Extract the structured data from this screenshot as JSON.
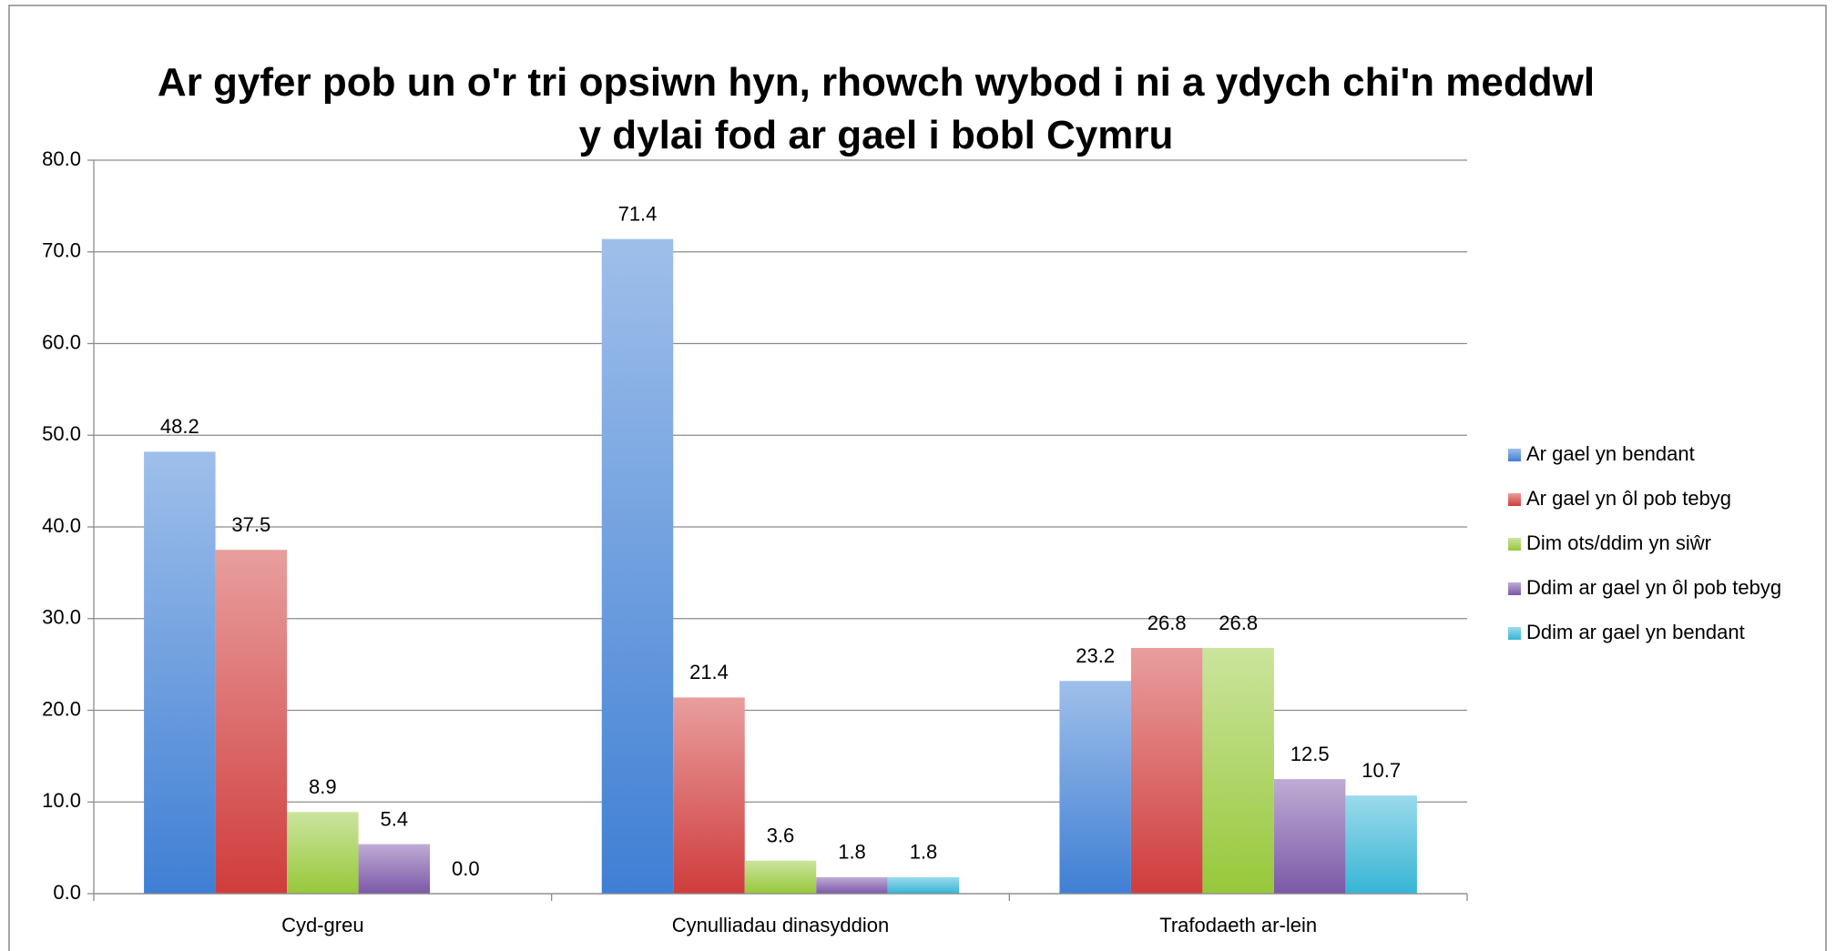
{
  "chart_data": {
    "type": "bar",
    "title": "Ar gyfer pob un o'r tri opsiwn hyn, rhowch wybod i ni a ydych chi'n meddwl y dylai fod ar gael i bobl Cymru",
    "categories": [
      "Cyd-greu",
      "Cynulliadau dinasyddion",
      "Trafodaeth ar-lein"
    ],
    "series": [
      {
        "name": "Ar gael yn bendant",
        "color": "#3f7fd4",
        "values": [
          48.2,
          71.4,
          23.2
        ],
        "value_labels": [
          "48.2",
          "71.4",
          "23.2"
        ]
      },
      {
        "name": "Ar gael yn ôl pob tebyg",
        "color": "#d03c3c",
        "values": [
          37.5,
          21.4,
          26.8
        ],
        "value_labels": [
          "37.5",
          "21.4",
          "26.8"
        ]
      },
      {
        "name": "Dim ots/ddim yn siŵr",
        "color": "#97c83a",
        "values": [
          8.9,
          3.6,
          26.8
        ],
        "value_labels": [
          "8.9",
          "3.6",
          "26.8"
        ]
      },
      {
        "name": "Ddim ar gael yn ôl pob tebyg",
        "color": "#7c58a8",
        "values": [
          5.4,
          1.8,
          12.5
        ],
        "value_labels": [
          "5.4",
          "1.8",
          "12.5"
        ]
      },
      {
        "name": "Ddim ar gael yn bendant",
        "color": "#37b5d6",
        "values": [
          0,
          1.8,
          10.7
        ],
        "value_labels": [
          "0.0",
          "1.8",
          "10.7"
        ]
      }
    ],
    "ylim": [
      0,
      80
    ],
    "yticks": [
      {
        "value": 0,
        "label": "0.0"
      },
      {
        "value": 10,
        "label": "10.0"
      },
      {
        "value": 20,
        "label": "20.0"
      },
      {
        "value": 30,
        "label": "30.0"
      },
      {
        "value": 40,
        "label": "40.0"
      },
      {
        "value": 50,
        "label": "50.0"
      },
      {
        "value": 60,
        "label": "60.0"
      },
      {
        "value": 70,
        "label": "70.0"
      },
      {
        "value": 80,
        "label": "80.0"
      }
    ],
    "grid": true,
    "legend": "right"
  }
}
